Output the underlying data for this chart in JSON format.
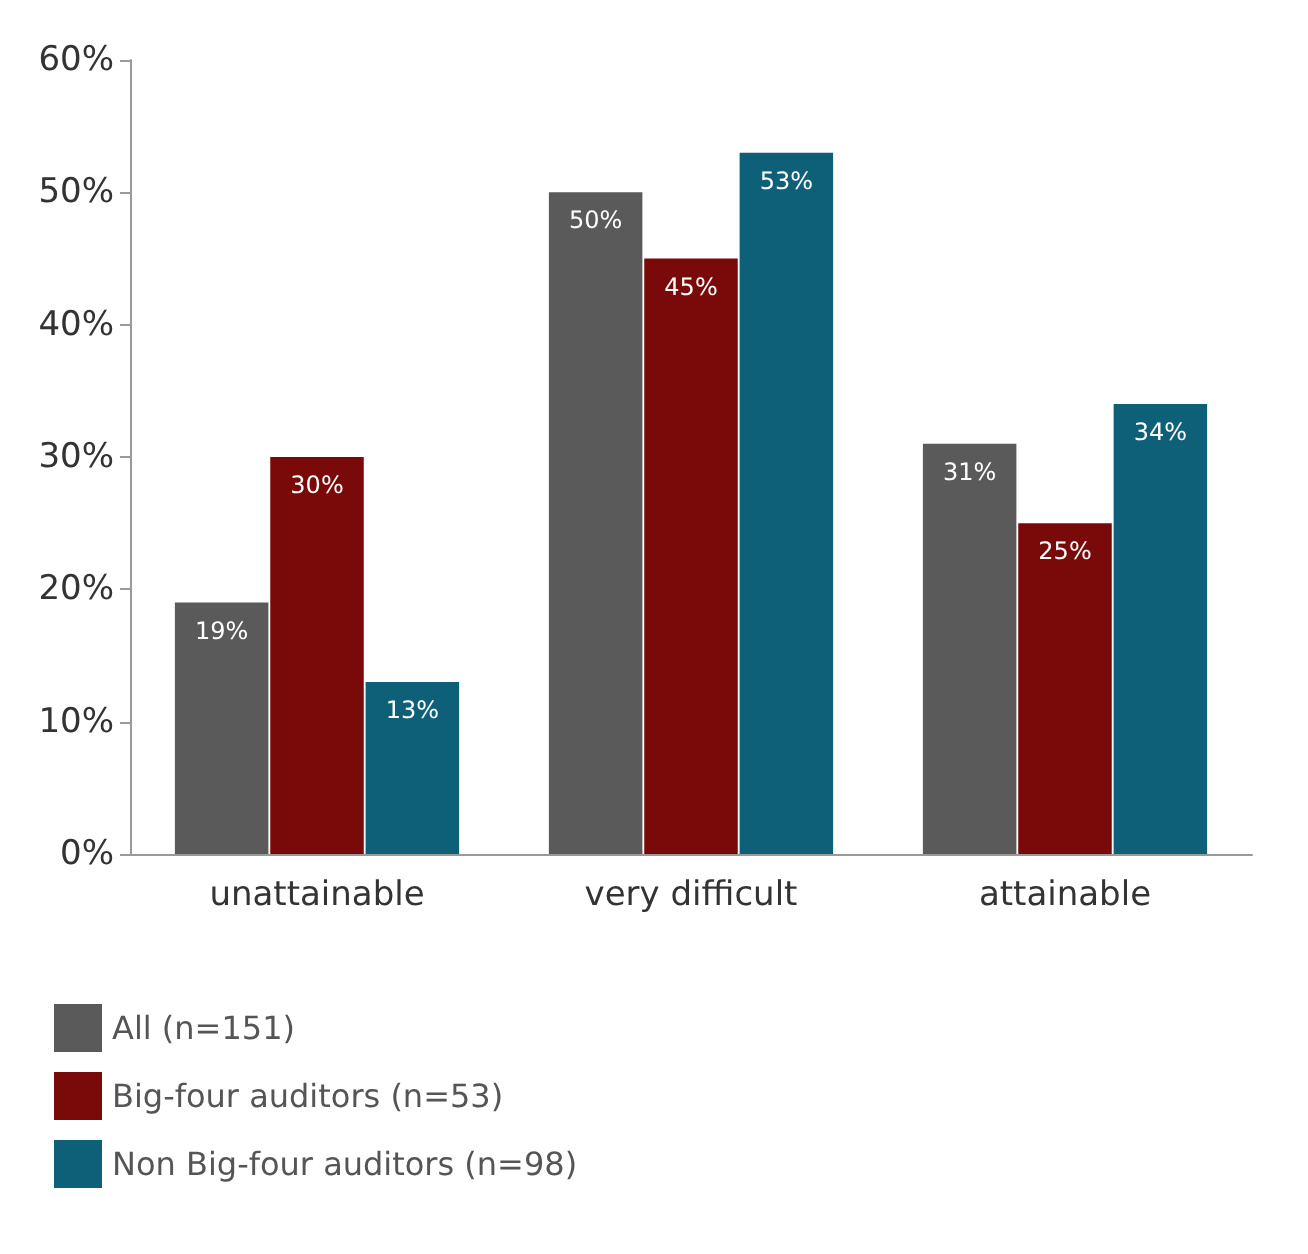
{
  "chart_data": {
    "type": "bar",
    "categories": [
      "unattainable",
      "very difficult",
      "attainable"
    ],
    "series": [
      {
        "name": "All (n=151)",
        "color": "#5a5a5a",
        "values": [
          19,
          50,
          31
        ],
        "value_labels": [
          "19%",
          "50%",
          "31%"
        ]
      },
      {
        "name": "Big-four auditors (n=53)",
        "color": "#7a0a0a",
        "values": [
          30,
          45,
          25
        ],
        "value_labels": [
          "30%",
          "45%",
          "25%"
        ]
      },
      {
        "name": "Non Big-four auditors (n=98)",
        "color": "#0e5f78",
        "values": [
          13,
          53,
          34
        ],
        "value_labels": [
          "13%",
          "53%",
          "34%"
        ]
      }
    ],
    "ylim": [
      0,
      60
    ],
    "yticks": [
      {
        "value": 0,
        "label": "0%"
      },
      {
        "value": 10,
        "label": "10%"
      },
      {
        "value": 20,
        "label": "20%"
      },
      {
        "value": 30,
        "label": "30%"
      },
      {
        "value": 40,
        "label": "40%"
      },
      {
        "value": 50,
        "label": "50%"
      },
      {
        "value": 60,
        "label": "60%"
      }
    ],
    "grid": false,
    "legend": "bottom left"
  }
}
